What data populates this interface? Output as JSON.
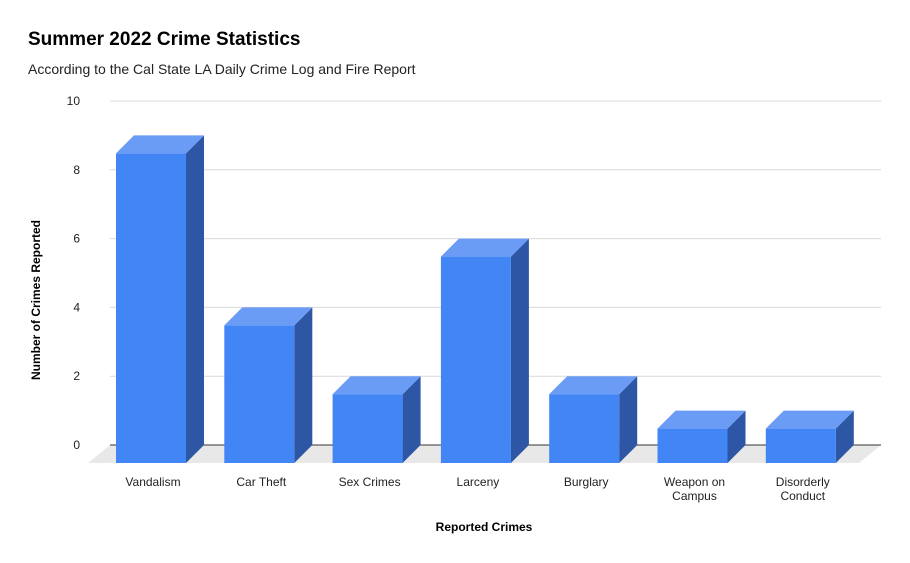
{
  "chart_data": {
    "type": "bar",
    "title": "Summer 2022 Crime Statistics",
    "subtitle": "According to the Cal State LA Daily Crime Log and Fire Report",
    "xlabel": "Reported Crimes",
    "ylabel": "Number of Crimes Reported",
    "categories": [
      "Vandalism",
      "Car Theft",
      "Sex Crimes",
      "Larceny",
      "Burglary",
      "Weapon on Campus",
      "Disorderly Conduct"
    ],
    "category_lines": [
      [
        "Vandalism"
      ],
      [
        "Car Theft"
      ],
      [
        "Sex Crimes"
      ],
      [
        "Larceny"
      ],
      [
        "Burglary"
      ],
      [
        "Weapon on",
        "Campus"
      ],
      [
        "Disorderly",
        "Conduct"
      ]
    ],
    "values": [
      9,
      4,
      2,
      6,
      2,
      1,
      1
    ],
    "ylim": [
      0,
      10
    ],
    "yticks": [
      0,
      2,
      4,
      6,
      8,
      10
    ],
    "grid": true,
    "style": "3d",
    "colors": {
      "bar_front": "#4285f4",
      "bar_top": "#6a9cf6",
      "bar_side": "#2d56a4",
      "floor": "#e8e8e8",
      "grid": "#d9d9d9"
    }
  }
}
